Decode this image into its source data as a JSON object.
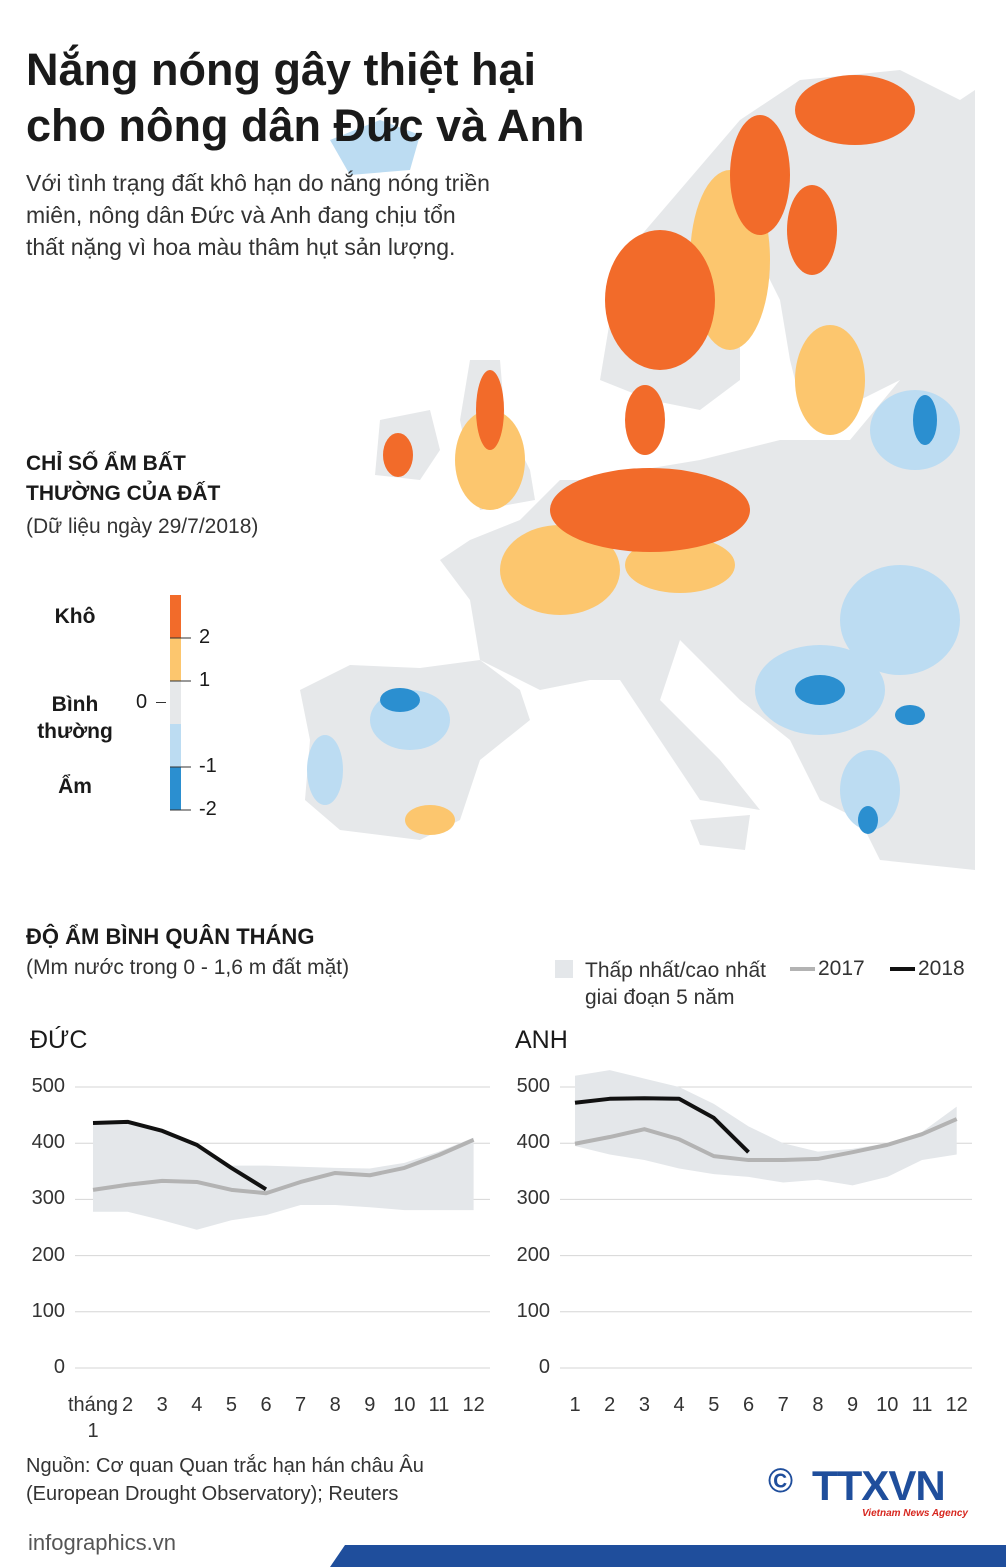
{
  "header": {
    "title": [
      "Nắng nóng gây thiệt hại",
      "cho nông dân Đức và Anh"
    ],
    "subtitle": [
      "Với tình trạng đất khô hạn do nắng nóng triền",
      "miên, nông dân Đức và Anh đang chịu tổn",
      "thất nặng vì hoa màu thâm hụt sản lượng."
    ]
  },
  "map": {
    "title": [
      "CHỈ SỐ ẨM BẤT",
      "THƯỜNG CỦA ĐẤT"
    ],
    "subtitle": "(Dữ liệu ngày 29/7/2018)",
    "legend": {
      "labels": [
        "Khô",
        "Bình thường",
        "Ẩm"
      ],
      "colors": [
        "#f26b2a",
        "#fcc66e",
        "#e6e8ea",
        "#bcdcf2",
        "#2b8fd0"
      ],
      "ticks": [
        2,
        1,
        0,
        -1,
        -2
      ]
    }
  },
  "charts_header": {
    "title": "ĐỘ ẨM BÌNH QUÂN THÁNG",
    "subtitle": "(Mm nước trong 0 - 1,6 m đất mặt)"
  },
  "chart_data": [
    {
      "type": "line",
      "title": "ĐỨC",
      "categories": [
        "tháng 1",
        "2",
        "3",
        "4",
        "5",
        "6",
        "7",
        "8",
        "9",
        "10",
        "11",
        "12"
      ],
      "ylim": [
        0,
        500
      ],
      "yticks": [
        0,
        100,
        200,
        300,
        400,
        500
      ],
      "grid": true,
      "series": [
        {
          "name": "Thấp nhất/cao nhất giai đoạn 5 năm",
          "color": "#e4e7ea",
          "high": [
            435,
            440,
            425,
            400,
            360,
            360,
            358,
            356,
            355,
            365,
            385,
            410
          ],
          "low": [
            278,
            278,
            263,
            246,
            263,
            272,
            290,
            290,
            286,
            281,
            281,
            281
          ]
        },
        {
          "name": "2017",
          "color": "#b3b3b3",
          "values": [
            317,
            326,
            333,
            331,
            317,
            311,
            331,
            347,
            343,
            356,
            379,
            406
          ]
        },
        {
          "name": "2018",
          "color": "#111111",
          "values": [
            436,
            438,
            422,
            397,
            356,
            318,
            null,
            null,
            null,
            null,
            null,
            null
          ]
        }
      ]
    },
    {
      "type": "line",
      "title": "ANH",
      "categories": [
        "1",
        "2",
        "3",
        "4",
        "5",
        "6",
        "7",
        "8",
        "9",
        "10",
        "11",
        "12"
      ],
      "ylim": [
        0,
        500
      ],
      "yticks": [
        0,
        100,
        200,
        300,
        400,
        500
      ],
      "grid": true,
      "series": [
        {
          "color": "#e4e7ea",
          "high": [
            520,
            530,
            515,
            500,
            470,
            430,
            400,
            385,
            390,
            400,
            420,
            465
          ],
          "low": [
            395,
            380,
            370,
            355,
            345,
            340,
            330,
            335,
            325,
            340,
            370,
            380
          ]
        },
        {
          "color": "#b3b3b3",
          "values": [
            399,
            411,
            425,
            407,
            377,
            370,
            370,
            372,
            384,
            397,
            416,
            443
          ]
        },
        {
          "color": "#111111",
          "values": [
            472,
            479,
            480,
            479,
            445,
            384,
            null,
            null,
            null,
            null,
            null,
            null
          ]
        }
      ]
    }
  ],
  "source": [
    "Nguồn: Cơ quan Quan trắc hạn hán châu Âu",
    "(European Drought Observatory); Reuters"
  ],
  "footer": {
    "site": "infographics.vn",
    "copyright": "©",
    "logo": "TTXVN",
    "agency": "Vietnam News Agency"
  }
}
